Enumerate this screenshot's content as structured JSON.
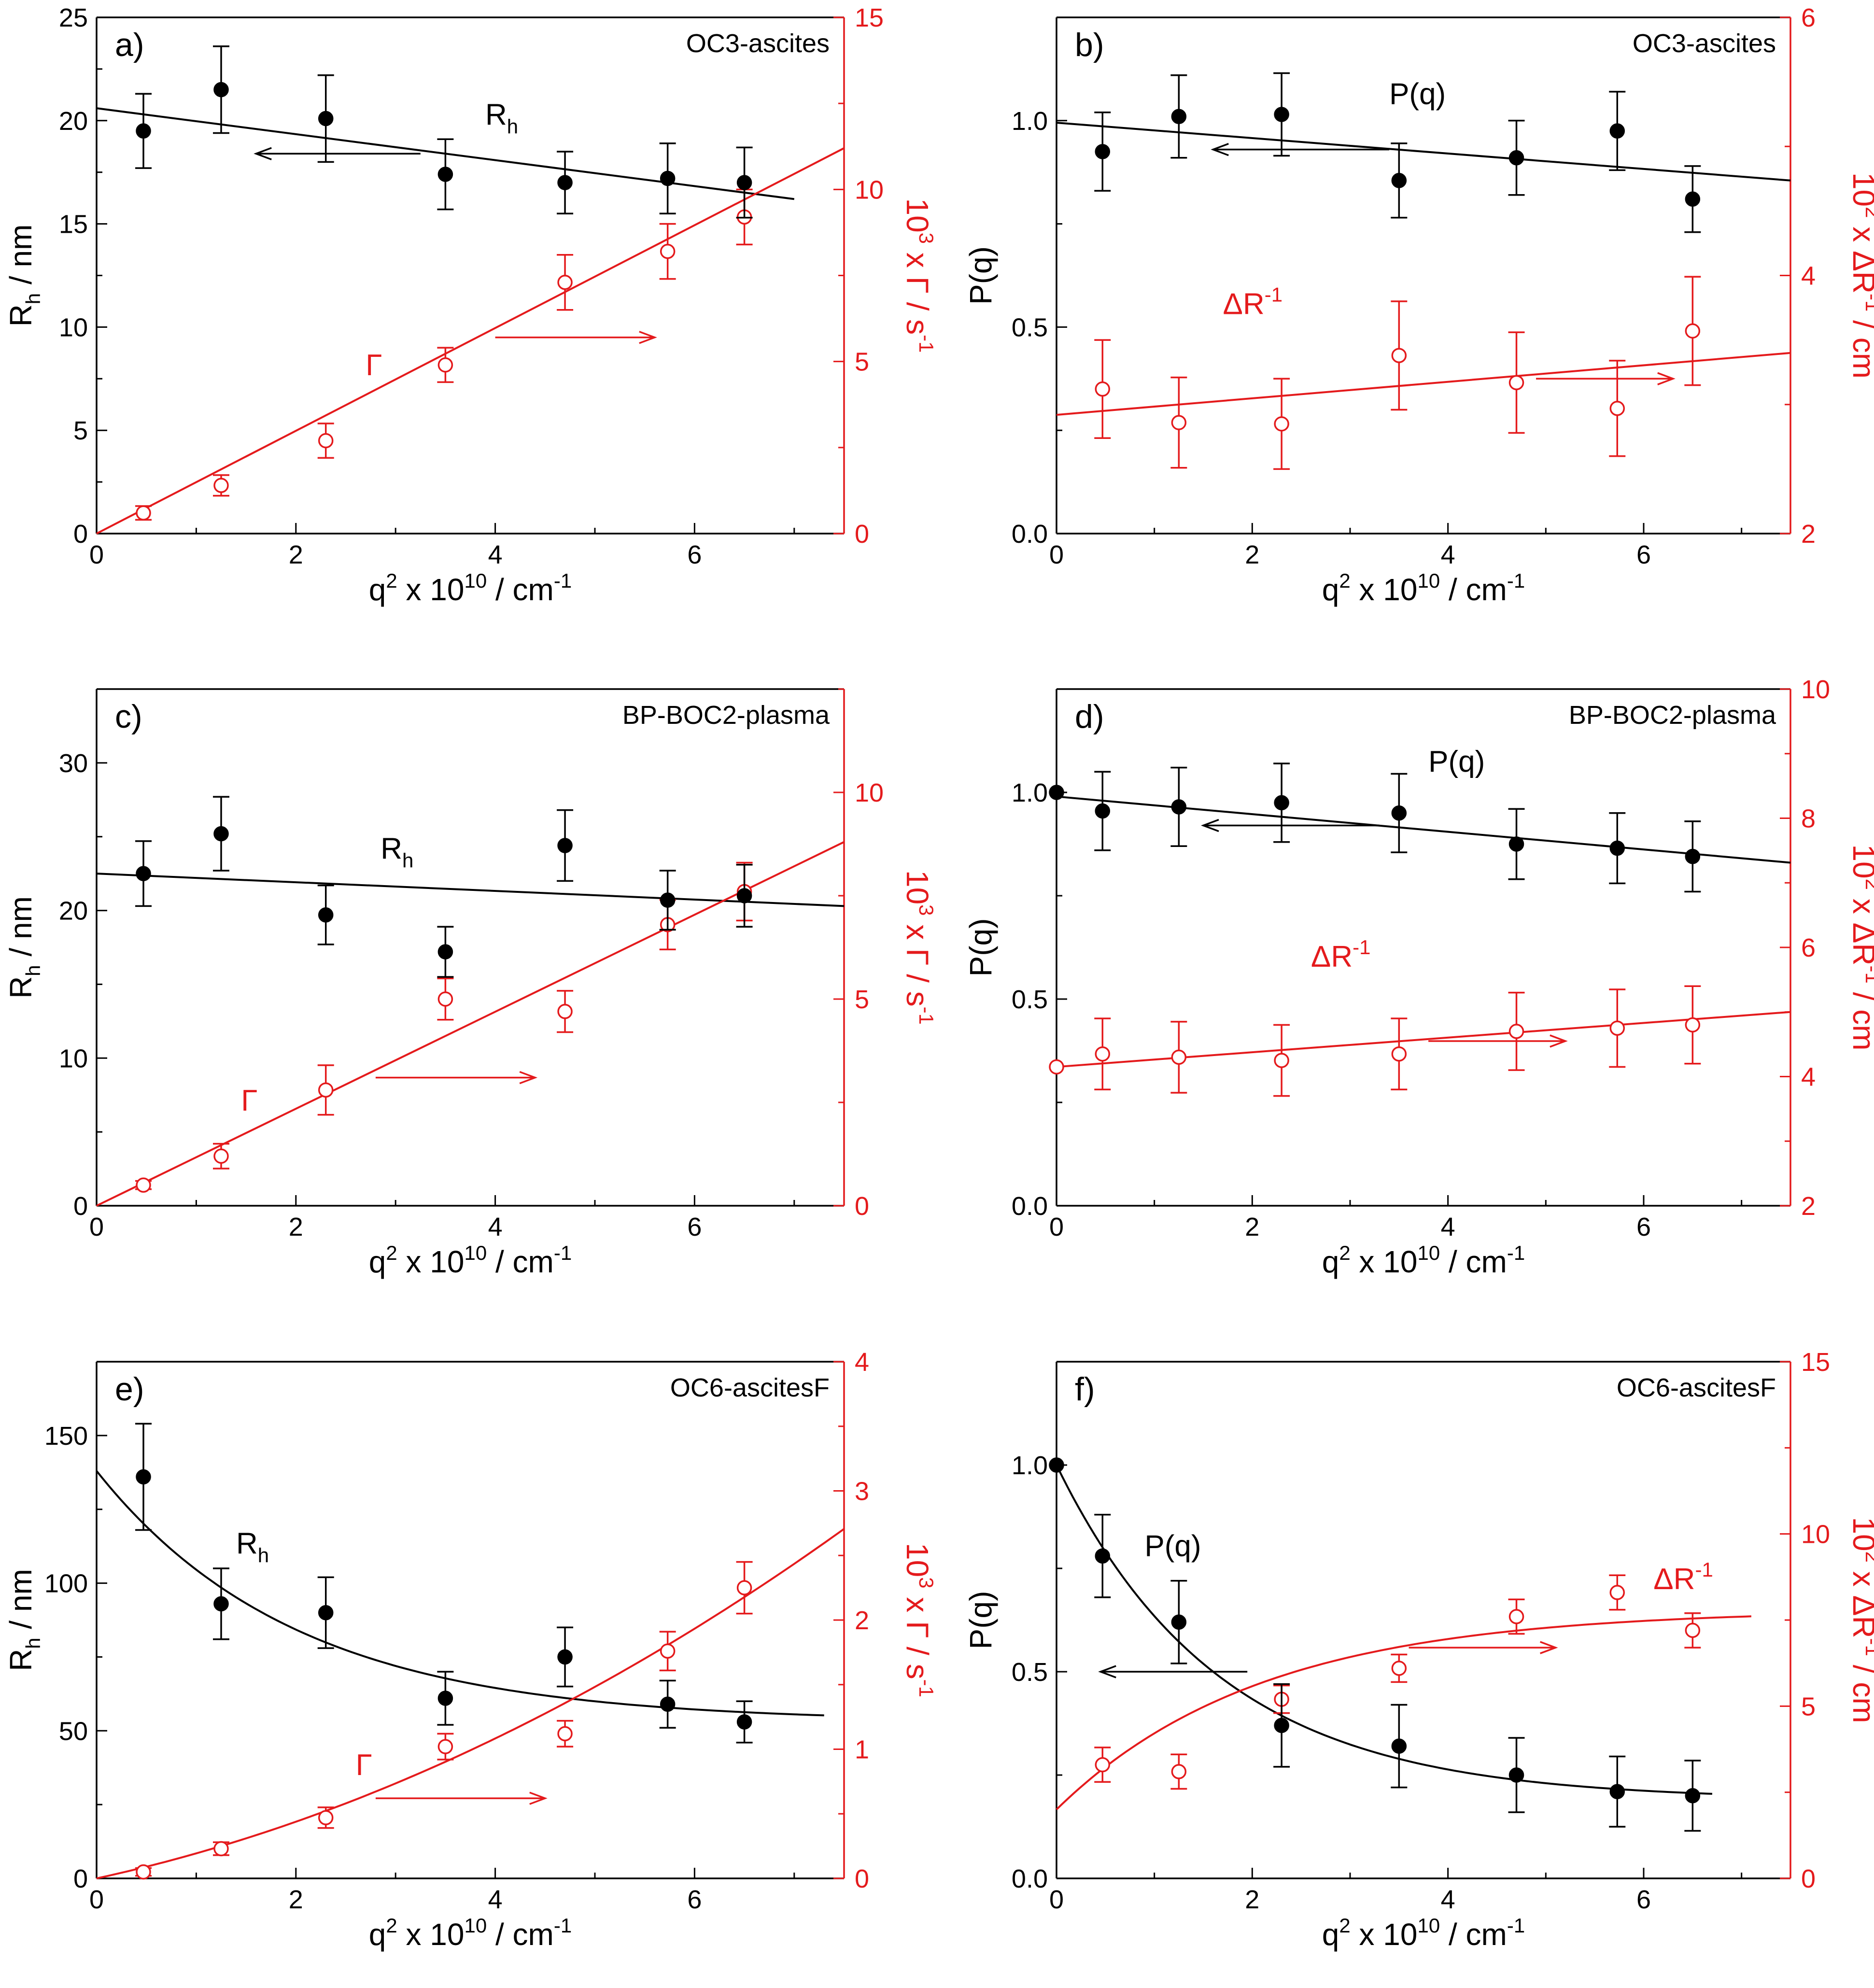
{
  "colors": {
    "black": "#000000",
    "red": "#e41a1c"
  },
  "axis_text": {
    "q2_prefix": "q",
    "q2_sup": "2",
    "q2_mid": " x 10",
    "q2_sup10": "10",
    "q2_mid2": " / cm",
    "q2_sup_m1": "-1",
    "rh_R": "R",
    "rh_sub": "h",
    "rh_tail": " / nm",
    "pq": "P(q)",
    "gam_pre": "10",
    "gam_sup": "3",
    "gam_mid": " x Γ / s",
    "gam_sup2": "-1",
    "dr_pre": "10",
    "dr_sup": "2",
    "dr_mid": " x ΔR",
    "dr_sup2": "-1",
    "dr_tail": " / cm"
  },
  "chart_data": [
    {
      "type": "scatter",
      "panel": "a)",
      "sample": "OC3-ascites",
      "xlabel": "q2 x 10^10 / cm-1",
      "xlim": [
        0,
        7.5
      ],
      "xticks": [
        "0",
        "2",
        "4",
        "6"
      ],
      "left": {
        "ylabel": "Rh / nm",
        "ylim": [
          0,
          25
        ],
        "yticks": [
          "0",
          "5",
          "10",
          "15",
          "20",
          "25"
        ],
        "x": [
          0.47,
          1.25,
          2.3,
          3.5,
          4.7,
          5.73,
          6.5
        ],
        "values": [
          19.5,
          21.5,
          20.1,
          17.4,
          17.0,
          17.2,
          17.0
        ],
        "errors": [
          1.8,
          2.1,
          2.1,
          1.7,
          1.5,
          1.7,
          1.7
        ],
        "fit": [
          [
            0,
            20.6
          ],
          [
            7.0,
            16.2
          ]
        ],
        "curve_label": "R",
        "curve_label_sub": "h"
      },
      "right": {
        "ylabel": "10^3 x Γ / s-1",
        "ylim": [
          0,
          15
        ],
        "yticks": [
          "0",
          "5",
          "10",
          "15"
        ],
        "x": [
          0.47,
          1.25,
          2.3,
          3.5,
          4.7,
          5.73,
          6.5
        ],
        "values": [
          0.6,
          1.4,
          2.7,
          4.9,
          7.3,
          8.2,
          9.2
        ],
        "errors": [
          0.2,
          0.3,
          0.5,
          0.5,
          0.8,
          0.8,
          0.8
        ],
        "fit": [
          [
            0,
            0
          ],
          [
            7.5,
            11.2
          ]
        ],
        "curve_label": "Γ",
        "curve_label_sub": ""
      }
    },
    {
      "type": "scatter",
      "panel": "b)",
      "sample": "OC3-ascites",
      "xlabel": "q2 x 10^10 / cm-1",
      "xlim": [
        0,
        7.5
      ],
      "xticks": [
        "0",
        "2",
        "4",
        "6"
      ],
      "left": {
        "ylabel": "P(q)",
        "ylim": [
          0,
          1.25
        ],
        "yticks": [
          "0.0",
          "0.5",
          "1.0"
        ],
        "x": [
          0.47,
          1.25,
          2.3,
          3.5,
          4.7,
          5.73,
          6.5
        ],
        "values": [
          0.925,
          1.01,
          1.015,
          0.855,
          0.91,
          0.975,
          0.81
        ],
        "errors": [
          0.095,
          0.1,
          0.1,
          0.09,
          0.09,
          0.095,
          0.08
        ],
        "fit": [
          [
            0,
            0.995
          ],
          [
            7.5,
            0.855
          ]
        ],
        "curve_label": "P(q)",
        "curve_label_sub": ""
      },
      "right": {
        "ylabel": "10^2 x ΔR-1 / cm",
        "ylim": [
          2,
          6
        ],
        "yticks": [
          "2",
          "4",
          "6"
        ],
        "x": [
          0.47,
          1.25,
          2.3,
          3.5,
          4.7,
          5.73,
          6.5
        ],
        "values": [
          3.12,
          2.86,
          2.85,
          3.38,
          3.17,
          2.97,
          3.57
        ],
        "errors": [
          0.38,
          0.35,
          0.35,
          0.42,
          0.39,
          0.37,
          0.42
        ],
        "fit": [
          [
            0,
            2.92
          ],
          [
            7.5,
            3.4
          ]
        ],
        "curve_label": "ΔR",
        "curve_label_sub": "-1"
      }
    },
    {
      "type": "scatter",
      "panel": "c)",
      "sample": "BP-BOC2-plasma",
      "xlabel": "q2 x 10^10 / cm-1",
      "xlim": [
        0,
        7.5
      ],
      "xticks": [
        "0",
        "2",
        "4",
        "6"
      ],
      "left": {
        "ylabel": "Rh / nm",
        "ylim": [
          0,
          35
        ],
        "yticks": [
          "0",
          "10",
          "20",
          "30"
        ],
        "x": [
          0.47,
          1.25,
          2.3,
          3.5,
          4.7,
          5.73,
          6.5
        ],
        "values": [
          22.5,
          25.2,
          19.7,
          17.2,
          24.4,
          20.7,
          21.0
        ],
        "errors": [
          2.2,
          2.5,
          2.0,
          1.7,
          2.4,
          2.0,
          2.1
        ],
        "fit": [
          [
            0,
            22.5
          ],
          [
            7.5,
            20.3
          ]
        ],
        "curve_label": "R",
        "curve_label_sub": "h"
      },
      "right": {
        "ylabel": "10^3 x Γ / s-1",
        "ylim": [
          0,
          12.5
        ],
        "yticks": [
          "0",
          "5",
          "10"
        ],
        "x": [
          0.47,
          1.25,
          2.3,
          3.5,
          4.7,
          5.73,
          6.5
        ],
        "values": [
          0.5,
          1.2,
          2.8,
          5.0,
          4.7,
          6.8,
          7.6
        ],
        "errors": [
          0.1,
          0.3,
          0.6,
          0.5,
          0.5,
          0.6,
          0.7
        ],
        "fit": [
          [
            0,
            0
          ],
          [
            7.5,
            8.8
          ]
        ],
        "curve_label": "Γ",
        "curve_label_sub": ""
      }
    },
    {
      "type": "scatter",
      "panel": "d)",
      "sample": "BP-BOC2-plasma",
      "xlabel": "q2 x 10^10 / cm-1",
      "xlim": [
        0,
        7.5
      ],
      "xticks": [
        "0",
        "2",
        "4",
        "6"
      ],
      "left": {
        "ylabel": "P(q)",
        "ylim": [
          0,
          1.25
        ],
        "yticks": [
          "0.0",
          "0.5",
          "1.0"
        ],
        "x": [
          0,
          0.47,
          1.25,
          2.3,
          3.5,
          4.7,
          5.73,
          6.5
        ],
        "values": [
          1.0,
          0.955,
          0.965,
          0.975,
          0.95,
          0.875,
          0.865,
          0.845
        ],
        "errors": [
          0,
          0.095,
          0.095,
          0.095,
          0.095,
          0.085,
          0.085,
          0.085
        ],
        "fit": [
          [
            0,
            0.99
          ],
          [
            7.5,
            0.83
          ]
        ],
        "curve_label": "P(q)",
        "curve_label_sub": ""
      },
      "right": {
        "ylabel": "10^2 x ΔR-1 / cm",
        "ylim": [
          2,
          10
        ],
        "yticks": [
          "2",
          "4",
          "6",
          "8",
          "10"
        ],
        "x": [
          0,
          0.47,
          1.25,
          2.3,
          3.5,
          4.7,
          5.73,
          6.5
        ],
        "values": [
          4.15,
          4.35,
          4.3,
          4.25,
          4.35,
          4.7,
          4.75,
          4.8
        ],
        "errors": [
          0,
          0.55,
          0.55,
          0.55,
          0.55,
          0.6,
          0.6,
          0.6
        ],
        "fit": [
          [
            0,
            4.15
          ],
          [
            7.5,
            5.0
          ]
        ],
        "curve_label": "ΔR",
        "curve_label_sub": "-1"
      }
    },
    {
      "type": "scatter",
      "panel": "e)",
      "sample": "OC6-ascitesF",
      "xlabel": "q2 x 10^10 / cm-1",
      "xlim": [
        0,
        7.5
      ],
      "xticks": [
        "0",
        "2",
        "4",
        "6"
      ],
      "left": {
        "ylabel": "Rh / nm",
        "ylim": [
          0,
          175
        ],
        "yticks": [
          "0",
          "50",
          "100",
          "150"
        ],
        "x": [
          0.47,
          1.25,
          2.3,
          3.5,
          4.7,
          5.73,
          6.5
        ],
        "values": [
          136,
          93,
          90,
          61,
          75,
          59,
          53
        ],
        "errors": [
          18,
          12,
          12,
          9,
          10,
          8,
          7
        ],
        "fit_type": "exp",
        "fit_params": {
          "a": 85,
          "b": 0.5,
          "c": 53,
          "x_end": 7.3
        },
        "curve_label": "R",
        "curve_label_sub": "h"
      },
      "right": {
        "ylabel": "10^3 x Γ / s-1",
        "ylim": [
          0,
          4
        ],
        "yticks": [
          "0",
          "1",
          "2",
          "3",
          "4"
        ],
        "x": [
          0.47,
          1.25,
          2.3,
          3.5,
          4.7,
          5.73,
          6.5
        ],
        "values": [
          0.05,
          0.23,
          0.47,
          1.02,
          1.12,
          1.76,
          2.25
        ],
        "errors": [
          0.03,
          0.05,
          0.08,
          0.1,
          0.1,
          0.15,
          0.2
        ],
        "fit_type": "poly",
        "fit_params": {
          "a": 0.168,
          "b": 0.0257,
          "x_end": 7.5
        },
        "curve_label": "Γ",
        "curve_label_sub": ""
      }
    },
    {
      "type": "scatter",
      "panel": "f)",
      "sample": "OC6-ascitesF",
      "xlabel": "q2 x 10^10 / cm-1",
      "xlim": [
        0,
        7.5
      ],
      "xticks": [
        "0",
        "2",
        "4",
        "6"
      ],
      "left": {
        "ylabel": "P(q)",
        "ylim": [
          0,
          1.25
        ],
        "yticks": [
          "0.0",
          "0.5",
          "1.0"
        ],
        "x": [
          0,
          0.47,
          1.25,
          2.3,
          3.5,
          4.7,
          5.73,
          6.5
        ],
        "values": [
          1.0,
          0.78,
          0.62,
          0.37,
          0.32,
          0.25,
          0.21,
          0.2
        ],
        "errors": [
          0,
          0.1,
          0.1,
          0.1,
          0.1,
          0.09,
          0.085,
          0.085
        ],
        "fit_type": "exp",
        "fit_params": {
          "a": 0.81,
          "b": 0.6,
          "c": 0.19,
          "x_end": 6.7
        },
        "curve_label": "P(q)",
        "curve_label_sub": ""
      },
      "right": {
        "ylabel": "10^2 x ΔR-1 / cm",
        "ylim": [
          0,
          15
        ],
        "yticks": [
          "0",
          "5",
          "10",
          "15"
        ],
        "x": [
          0.47,
          1.25,
          2.3,
          3.5,
          4.7,
          5.73,
          6.5
        ],
        "values": [
          3.3,
          3.1,
          5.2,
          6.1,
          7.6,
          8.3,
          7.2
        ],
        "errors": [
          0.5,
          0.5,
          0.4,
          0.4,
          0.5,
          0.5,
          0.5
        ],
        "fit_type": "sat",
        "fit_params": {
          "a": 2.0,
          "b": 5.8,
          "k": 0.48,
          "x_end": 7.1
        },
        "curve_label": "ΔR",
        "curve_label_sub": "-1"
      }
    }
  ]
}
